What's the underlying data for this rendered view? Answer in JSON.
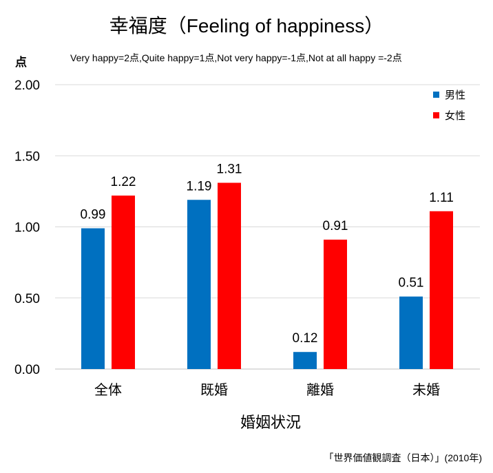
{
  "chart_data": {
    "type": "bar",
    "title": "幸福度（Feeling of happiness）",
    "subtitle": "Very happy=2点,Quite happy=1点,Not very happy=-1点,Not at all happy =-2点",
    "y_unit": "点",
    "xlabel": "婚姻状況",
    "ylabel": "",
    "categories": [
      "全体",
      "既婚",
      "離婚",
      "未婚"
    ],
    "series": [
      {
        "name": "男性",
        "color": "#0070c0",
        "values": [
          0.99,
          1.19,
          0.12,
          0.51
        ],
        "labels": [
          "0.99",
          "1.19",
          "0.12",
          "0.51"
        ]
      },
      {
        "name": "女性",
        "color": "#ff0000",
        "values": [
          1.22,
          1.31,
          0.91,
          1.11
        ],
        "labels": [
          "1.22",
          "1.31",
          "0.91",
          "1.11"
        ]
      }
    ],
    "ylim": [
      0,
      2
    ],
    "yticks": [
      "0.00",
      "0.50",
      "1.00",
      "1.50",
      "2.00"
    ],
    "ytick_values": [
      0,
      0.5,
      1,
      1.5,
      2
    ],
    "grid": true,
    "legend_position": "top-right",
    "source": "「世界価値観調査（日本）」(2010年)"
  }
}
